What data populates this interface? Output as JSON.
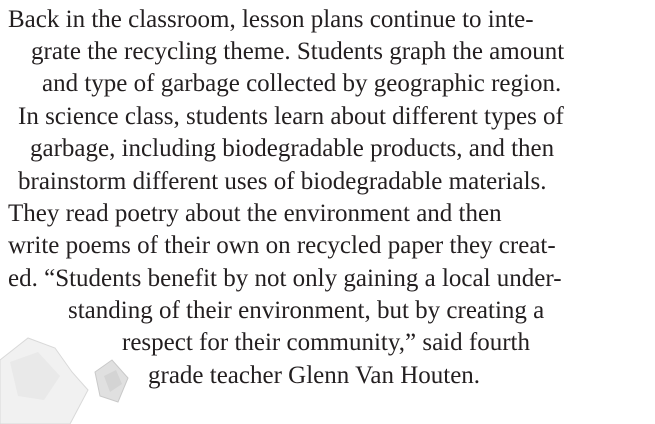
{
  "paragraph": {
    "lines": [
      "Back in the classroom, lesson plans continue to inte-",
      "grate the recycling theme. Students graph the amount",
      "and type of garbage collected by geographic region.",
      "In science class, students learn about different types of",
      "garbage, including biodegradable products, and then",
      "brainstorm different uses of biodegradable materials.",
      "They read poetry about the environment and then",
      "write poems of their own on recycled paper they creat-",
      "ed. “Students benefit by not only gaining a local under-",
      "standing of their environment, but by creating a",
      "respect for their community,” said fourth",
      "grade teacher Glenn Van Houten."
    ]
  }
}
